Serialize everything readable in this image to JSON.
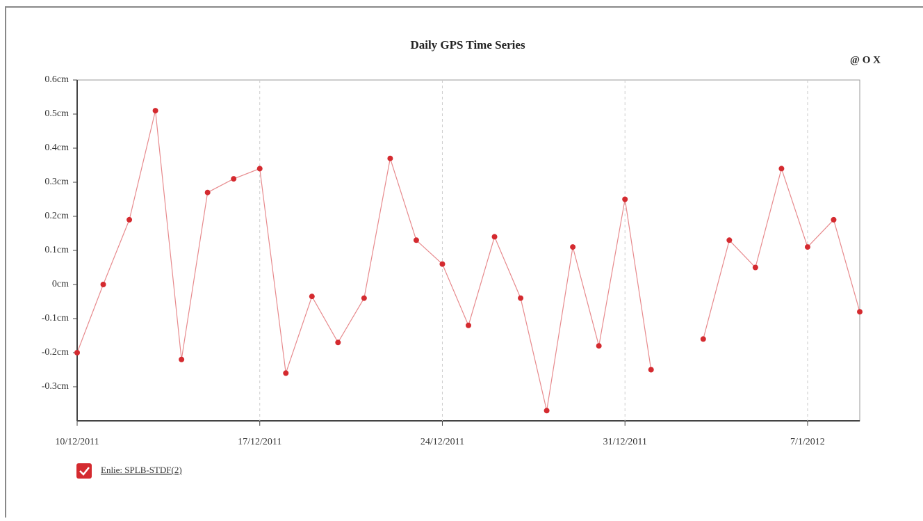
{
  "chart_data": {
    "type": "line",
    "title": "Daily GPS Time Series",
    "toolbar": "@ O X",
    "x": [
      "10/12/2011",
      "11/12/2011",
      "12/12/2011",
      "13/12/2011",
      "14/12/2011",
      "15/12/2011",
      "16/12/2011",
      "17/12/2011",
      "18/12/2011",
      "19/12/2011",
      "20/12/2011",
      "21/12/2011",
      "22/12/2011",
      "23/12/2011",
      "24/12/2011",
      "25/12/2011",
      "26/12/2011",
      "27/12/2011",
      "28/12/2011",
      "29/12/2011",
      "30/12/2011",
      "31/12/2011",
      "1/1/2012",
      "2/1/2012",
      "3/1/2012",
      "4/1/2012",
      "5/1/2012",
      "6/1/2012",
      "7/1/2012",
      "8/1/2012",
      "9/1/2012"
    ],
    "series": [
      {
        "name": "Enlie: SPLB-STDF(2)",
        "color": "#d42a2f",
        "values": [
          -0.2,
          0.0,
          0.19,
          0.51,
          -0.22,
          0.27,
          0.31,
          0.34,
          -0.26,
          -0.035,
          -0.17,
          -0.04,
          0.37,
          0.13,
          0.06,
          -0.12,
          0.14,
          -0.04,
          -0.37,
          0.11,
          -0.18,
          0.25,
          -0.25,
          null,
          -0.16,
          0.13,
          0.05,
          0.34,
          0.11,
          0.19,
          -0.08
        ]
      }
    ],
    "xlim": [
      "10/12/2011",
      "9/1/2012"
    ],
    "xticks": [
      "10/12/2011",
      "17/12/2011",
      "24/12/2011",
      "31/12/2011",
      "7/1/2012"
    ],
    "ylim": [
      -0.4,
      0.6
    ],
    "yticks": [
      {
        "value": 0.6,
        "label": "0.6cm"
      },
      {
        "value": 0.5,
        "label": "0.5cm"
      },
      {
        "value": 0.4,
        "label": "0.4cm"
      },
      {
        "value": 0.3,
        "label": "0.3cm"
      },
      {
        "value": 0.2,
        "label": "0.2cm"
      },
      {
        "value": 0.1,
        "label": "0.1cm"
      },
      {
        "value": 0,
        "label": "0cm"
      },
      {
        "value": -0.1,
        "label": "-0.1cm"
      },
      {
        "value": -0.2,
        "label": "-0.2cm"
      },
      {
        "value": -0.3,
        "label": "-0.3cm"
      }
    ],
    "grid": true
  }
}
